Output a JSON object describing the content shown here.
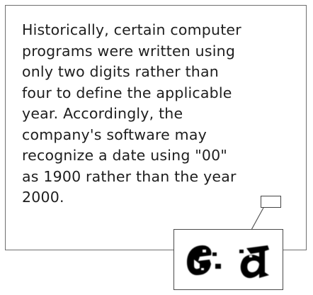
{
  "paragraph": {
    "lines": [
      "Historically, certain computer",
      "programs were written using",
      "only two digits rather than",
      "four to define the applicable",
      "year. Accordingly, the",
      "company's software may",
      "recognize a date using \"00\"",
      "as 1900 rather than the year",
      "2000."
    ]
  }
}
